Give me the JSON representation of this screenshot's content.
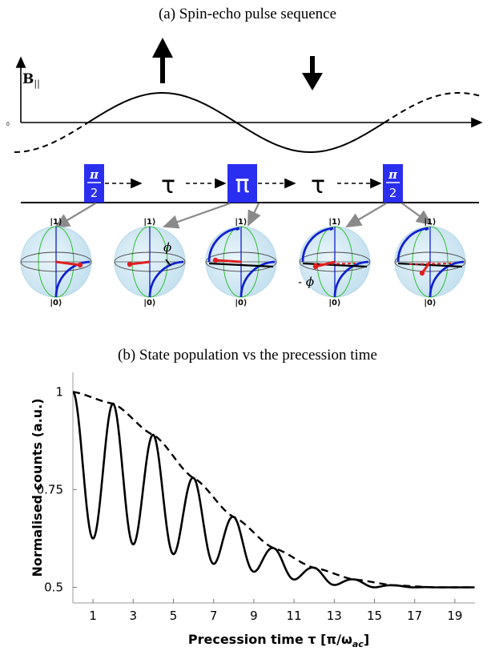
{
  "panel_a": {
    "caption": "(a) Spin-echo pulse sequence",
    "axis_label": "B",
    "axis_label_sub": "||",
    "origin_label": "0",
    "pulses": [
      {
        "num": "π",
        "den": "2"
      },
      {
        "symbol": "π"
      },
      {
        "num": "π",
        "den": "2"
      }
    ],
    "tau_label": "τ",
    "spheres": [
      {
        "top": "|1⟩",
        "bottom": "|0⟩",
        "annotation": ""
      },
      {
        "top": "|1⟩",
        "bottom": "|0⟩",
        "annotation": "ϕ"
      },
      {
        "top": "|1⟩",
        "bottom": "|0⟩",
        "annotation": ""
      },
      {
        "top": "|1⟩",
        "bottom": "|0⟩",
        "annotation": "- ϕ"
      },
      {
        "top": "|1⟩",
        "bottom": "|0⟩",
        "annotation": ""
      }
    ]
  },
  "panel_b": {
    "caption": "(b) State population vs the precession time"
  },
  "chart_data": {
    "type": "line",
    "xlabel": "Precession time τ [π/ω",
    "xlabel_sub": "ac",
    "xlabel_end": "]",
    "ylabel": "Normalised counts (a.u.)",
    "xlim": [
      0,
      20
    ],
    "ylim": [
      0.46,
      1.05
    ],
    "x_ticks": [
      1,
      3,
      5,
      7,
      9,
      11,
      13,
      15,
      17,
      19
    ],
    "y_ticks": [
      0.5,
      0.75,
      1
    ],
    "y_tick_labels": [
      "0.5",
      "0.75",
      "1"
    ],
    "series": [
      {
        "style": "solid",
        "color": "#000000",
        "minima": [
          [
            1,
            0.625
          ],
          [
            3,
            0.61
          ],
          [
            5,
            0.585
          ],
          [
            7,
            0.56
          ],
          [
            9,
            0.54
          ],
          [
            11,
            0.52
          ],
          [
            13,
            0.506
          ],
          [
            15,
            0.5
          ],
          [
            17,
            0.5
          ],
          [
            19,
            0.5
          ]
        ],
        "maxima": [
          [
            0,
            1.0
          ],
          [
            2,
            0.97
          ],
          [
            4,
            0.89
          ],
          [
            6,
            0.78
          ],
          [
            8,
            0.68
          ],
          [
            10,
            0.6
          ],
          [
            12,
            0.55
          ],
          [
            14,
            0.52
          ],
          [
            16,
            0.505
          ],
          [
            18,
            0.5
          ],
          [
            20,
            0.5
          ]
        ]
      },
      {
        "style": "dashed",
        "color": "#000000",
        "points": [
          [
            0,
            1.0
          ],
          [
            2,
            0.97
          ],
          [
            4,
            0.89
          ],
          [
            6,
            0.78
          ],
          [
            8,
            0.68
          ],
          [
            10,
            0.6
          ],
          [
            12,
            0.55
          ],
          [
            14,
            0.52
          ],
          [
            16,
            0.505
          ],
          [
            18,
            0.5
          ],
          [
            20,
            0.5
          ]
        ]
      }
    ]
  },
  "colors": {
    "pulse_blue": "#2a2ef0",
    "bloch_blue": "#1020d0",
    "bloch_green": "#30c030",
    "arrow_red": "#e02020",
    "sphere_fill": "#cfe6f2",
    "arrow_gray": "#8a8a8a"
  }
}
